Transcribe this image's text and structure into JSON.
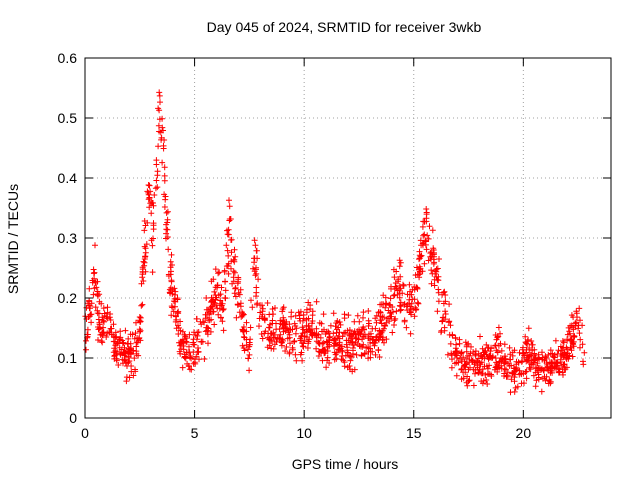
{
  "chart_data": {
    "type": "scatter",
    "title": "Day 045 of 2024, SRMTID for receiver 3wkb",
    "xlabel": "GPS time / hours",
    "ylabel": "SRMTID / TECUs",
    "xlim": [
      0,
      24
    ],
    "ylim": [
      0,
      0.6
    ],
    "x_ticks": [
      0,
      5,
      10,
      15,
      20
    ],
    "y_ticks": [
      0,
      0.1,
      0.2,
      0.3,
      0.4,
      0.5,
      0.6
    ],
    "x_tick_labels": [
      "0",
      "5",
      "10",
      "15",
      "20"
    ],
    "y_tick_labels": [
      "0",
      "0.1",
      "0.2",
      "0.3",
      "0.4",
      "0.5",
      "0.6"
    ],
    "grid": true,
    "marker": "+",
    "color": "#ff0000",
    "series": [
      {
        "name": "SRMTID",
        "envelope_x": [
          0.0,
          0.3,
          0.45,
          0.6,
          0.8,
          1.0,
          1.3,
          1.6,
          2.0,
          2.3,
          2.55,
          2.7,
          2.9,
          3.1,
          3.25,
          3.4,
          3.55,
          3.7,
          3.9,
          4.1,
          4.4,
          4.8,
          5.2,
          5.6,
          6.0,
          6.3,
          6.6,
          6.9,
          7.2,
          7.5,
          7.7,
          8.0,
          8.5,
          9.0,
          9.5,
          9.9,
          10.2,
          10.6,
          11.0,
          11.5,
          12.0,
          12.5,
          13.0,
          13.5,
          14.0,
          14.3,
          14.7,
          15.0,
          15.3,
          15.55,
          15.8,
          16.1,
          16.4,
          16.7,
          17.0,
          17.4,
          17.8,
          18.2,
          18.6,
          19.0,
          19.4,
          19.8,
          20.2,
          20.6,
          21.0,
          21.4,
          21.8,
          22.2,
          22.5,
          22.8
        ],
        "envelope_y": [
          0.14,
          0.2,
          0.26,
          0.17,
          0.15,
          0.16,
          0.13,
          0.11,
          0.1,
          0.12,
          0.16,
          0.27,
          0.38,
          0.3,
          0.4,
          0.52,
          0.44,
          0.32,
          0.23,
          0.2,
          0.12,
          0.1,
          0.13,
          0.16,
          0.2,
          0.18,
          0.32,
          0.22,
          0.16,
          0.1,
          0.28,
          0.16,
          0.14,
          0.15,
          0.13,
          0.14,
          0.15,
          0.14,
          0.12,
          0.13,
          0.12,
          0.14,
          0.13,
          0.15,
          0.18,
          0.22,
          0.17,
          0.2,
          0.26,
          0.33,
          0.27,
          0.22,
          0.17,
          0.13,
          0.1,
          0.09,
          0.1,
          0.09,
          0.1,
          0.11,
          0.09,
          0.08,
          0.11,
          0.09,
          0.08,
          0.09,
          0.1,
          0.12,
          0.18,
          0.09
        ],
        "spread": 0.045,
        "n_points": 1600
      }
    ]
  }
}
